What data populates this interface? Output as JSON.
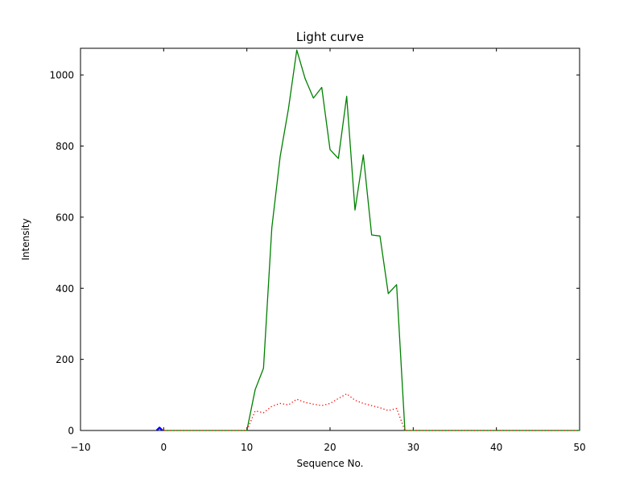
{
  "chart_data": {
    "type": "line",
    "title": "Light curve",
    "xlabel": "Sequence No.",
    "ylabel": "Intensity",
    "xlim": [
      -10,
      50
    ],
    "ylim": [
      0,
      1075
    ],
    "grid": false,
    "legend": null,
    "tick_direction": "in",
    "xticks": [
      -10,
      0,
      10,
      20,
      30,
      40,
      50
    ],
    "xtick_labels": [
      "−10",
      "0",
      "10",
      "20",
      "30",
      "40",
      "50"
    ],
    "yticks": [
      0,
      200,
      400,
      600,
      800,
      1000
    ],
    "ytick_labels": [
      "0",
      "200",
      "400",
      "600",
      "800",
      "1000"
    ],
    "series": [
      {
        "name": "green-solid-curve",
        "color": "#008000",
        "style": "solid",
        "width": 1.3,
        "x": [
          0,
          1,
          2,
          3,
          4,
          5,
          6,
          7,
          8,
          9,
          10,
          11,
          12,
          13,
          14,
          15,
          16,
          17,
          18,
          19,
          20,
          21,
          22,
          23,
          24,
          25,
          26,
          27,
          28,
          29,
          30,
          31,
          32,
          33,
          34,
          35,
          36,
          37,
          38,
          39,
          40,
          41,
          42,
          43,
          44,
          45,
          46,
          47,
          48,
          49,
          50
        ],
        "y": [
          0,
          0,
          0,
          0,
          0,
          0,
          0,
          0,
          0,
          0,
          0,
          115,
          175,
          570,
          770,
          905,
          1070,
          990,
          935,
          965,
          790,
          765,
          940,
          620,
          775,
          550,
          547,
          385,
          410,
          0,
          0,
          0,
          0,
          0,
          0,
          0,
          0,
          0,
          0,
          0,
          0,
          0,
          0,
          0,
          0,
          0,
          0,
          0,
          0,
          0,
          0
        ]
      },
      {
        "name": "red-dotted-curve",
        "color": "#ff0000",
        "style": "dotted",
        "width": 1.3,
        "x": [
          0,
          1,
          2,
          3,
          4,
          5,
          6,
          7,
          8,
          9,
          10,
          11,
          12,
          13,
          14,
          15,
          16,
          17,
          18,
          19,
          20,
          21,
          22,
          23,
          24,
          25,
          26,
          27,
          28,
          29,
          30,
          31,
          32,
          33,
          34,
          35,
          36,
          37,
          38,
          39,
          40,
          41,
          42,
          43,
          44,
          45,
          46,
          47,
          48,
          49,
          50
        ],
        "y": [
          0,
          0,
          0,
          0,
          0,
          0,
          0,
          0,
          0,
          0,
          0,
          55,
          50,
          68,
          76,
          72,
          88,
          79,
          74,
          70,
          76,
          90,
          103,
          85,
          76,
          70,
          64,
          56,
          62,
          0,
          0,
          0,
          0,
          0,
          0,
          0,
          0,
          0,
          0,
          0,
          0,
          0,
          0,
          0,
          0,
          0,
          0,
          0,
          0,
          0,
          0
        ]
      },
      {
        "name": "blue-spike",
        "color": "#0000ff",
        "style": "solid",
        "width": 2.4,
        "x": [
          -0.85,
          -0.5,
          -0.15
        ],
        "y": [
          0,
          8,
          0
        ]
      }
    ]
  }
}
